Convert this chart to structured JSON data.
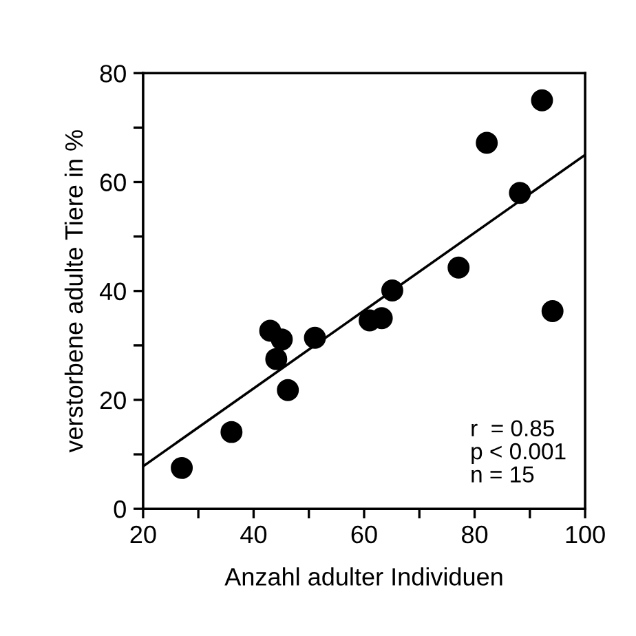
{
  "chart_data": {
    "type": "scatter",
    "xlabel": "Anzahl adulter Individuen",
    "ylabel": "verstorbene adulte Tiere in %",
    "xlim": [
      20,
      100
    ],
    "ylim": [
      0,
      80
    ],
    "xticks": [
      20,
      {
        "value": 30,
        "label": null
      },
      40,
      {
        "value": 50,
        "label": null
      },
      60,
      {
        "value": 70,
        "label": null
      },
      80,
      {
        "value": 90,
        "label": null
      },
      100
    ],
    "yticks": [
      0,
      {
        "value": 10,
        "label": null
      },
      20,
      {
        "value": 30,
        "label": null
      },
      40,
      {
        "value": 50,
        "label": null
      },
      60,
      {
        "value": 70,
        "label": null
      },
      80
    ],
    "grid": false,
    "legend": false,
    "series": [
      {
        "marker": "circle",
        "color": "#000000",
        "x": [
          27.0,
          36.0,
          43.0,
          45.1,
          44.1,
          46.2,
          51.1,
          61.0,
          63.2,
          65.1,
          77.1,
          82.2,
          88.2,
          92.2,
          94.1
        ],
        "values": [
          7.5,
          14.1,
          32.7,
          31.1,
          27.5,
          21.8,
          31.4,
          34.6,
          35.0,
          40.1,
          44.3,
          67.2,
          58.0,
          75.0,
          36.3
        ]
      },
      {
        "type": "line",
        "marker": "none",
        "color": "#000000",
        "line_style": "solid",
        "x": [
          20,
          100
        ],
        "values": [
          7.8,
          65.0
        ]
      }
    ],
    "annotations": [
      {
        "text": "r  = 0.85\np < 0.001\nn = 15"
      }
    ]
  }
}
